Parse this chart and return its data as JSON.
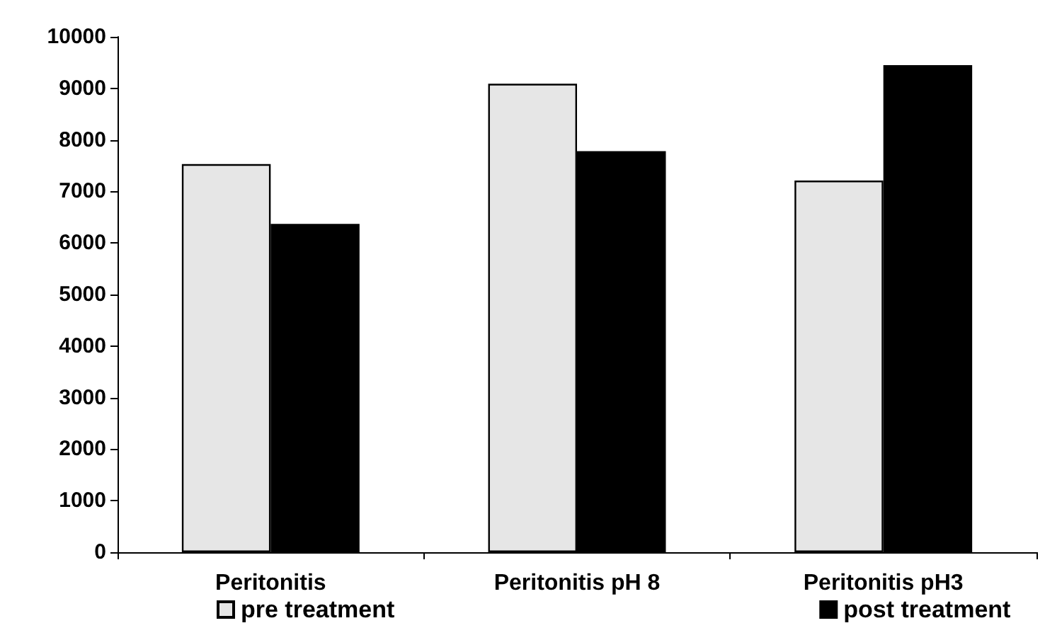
{
  "chart_data": {
    "type": "bar",
    "categories": [
      "Peritonitis",
      "Peritonitis pH 8",
      "Peritonitis pH3"
    ],
    "series": [
      {
        "name": "pre treatment",
        "color": "#e6e6e6",
        "values": [
          7530,
          9090,
          7210
        ]
      },
      {
        "name": "post treatment",
        "color": "#000000",
        "values": [
          6370,
          7780,
          9450
        ]
      }
    ],
    "ylim": [
      0,
      10000
    ],
    "yticks": [
      0,
      1000,
      2000,
      3000,
      4000,
      5000,
      6000,
      7000,
      8000,
      9000,
      10000
    ],
    "grid": false,
    "legend": "bottom"
  }
}
